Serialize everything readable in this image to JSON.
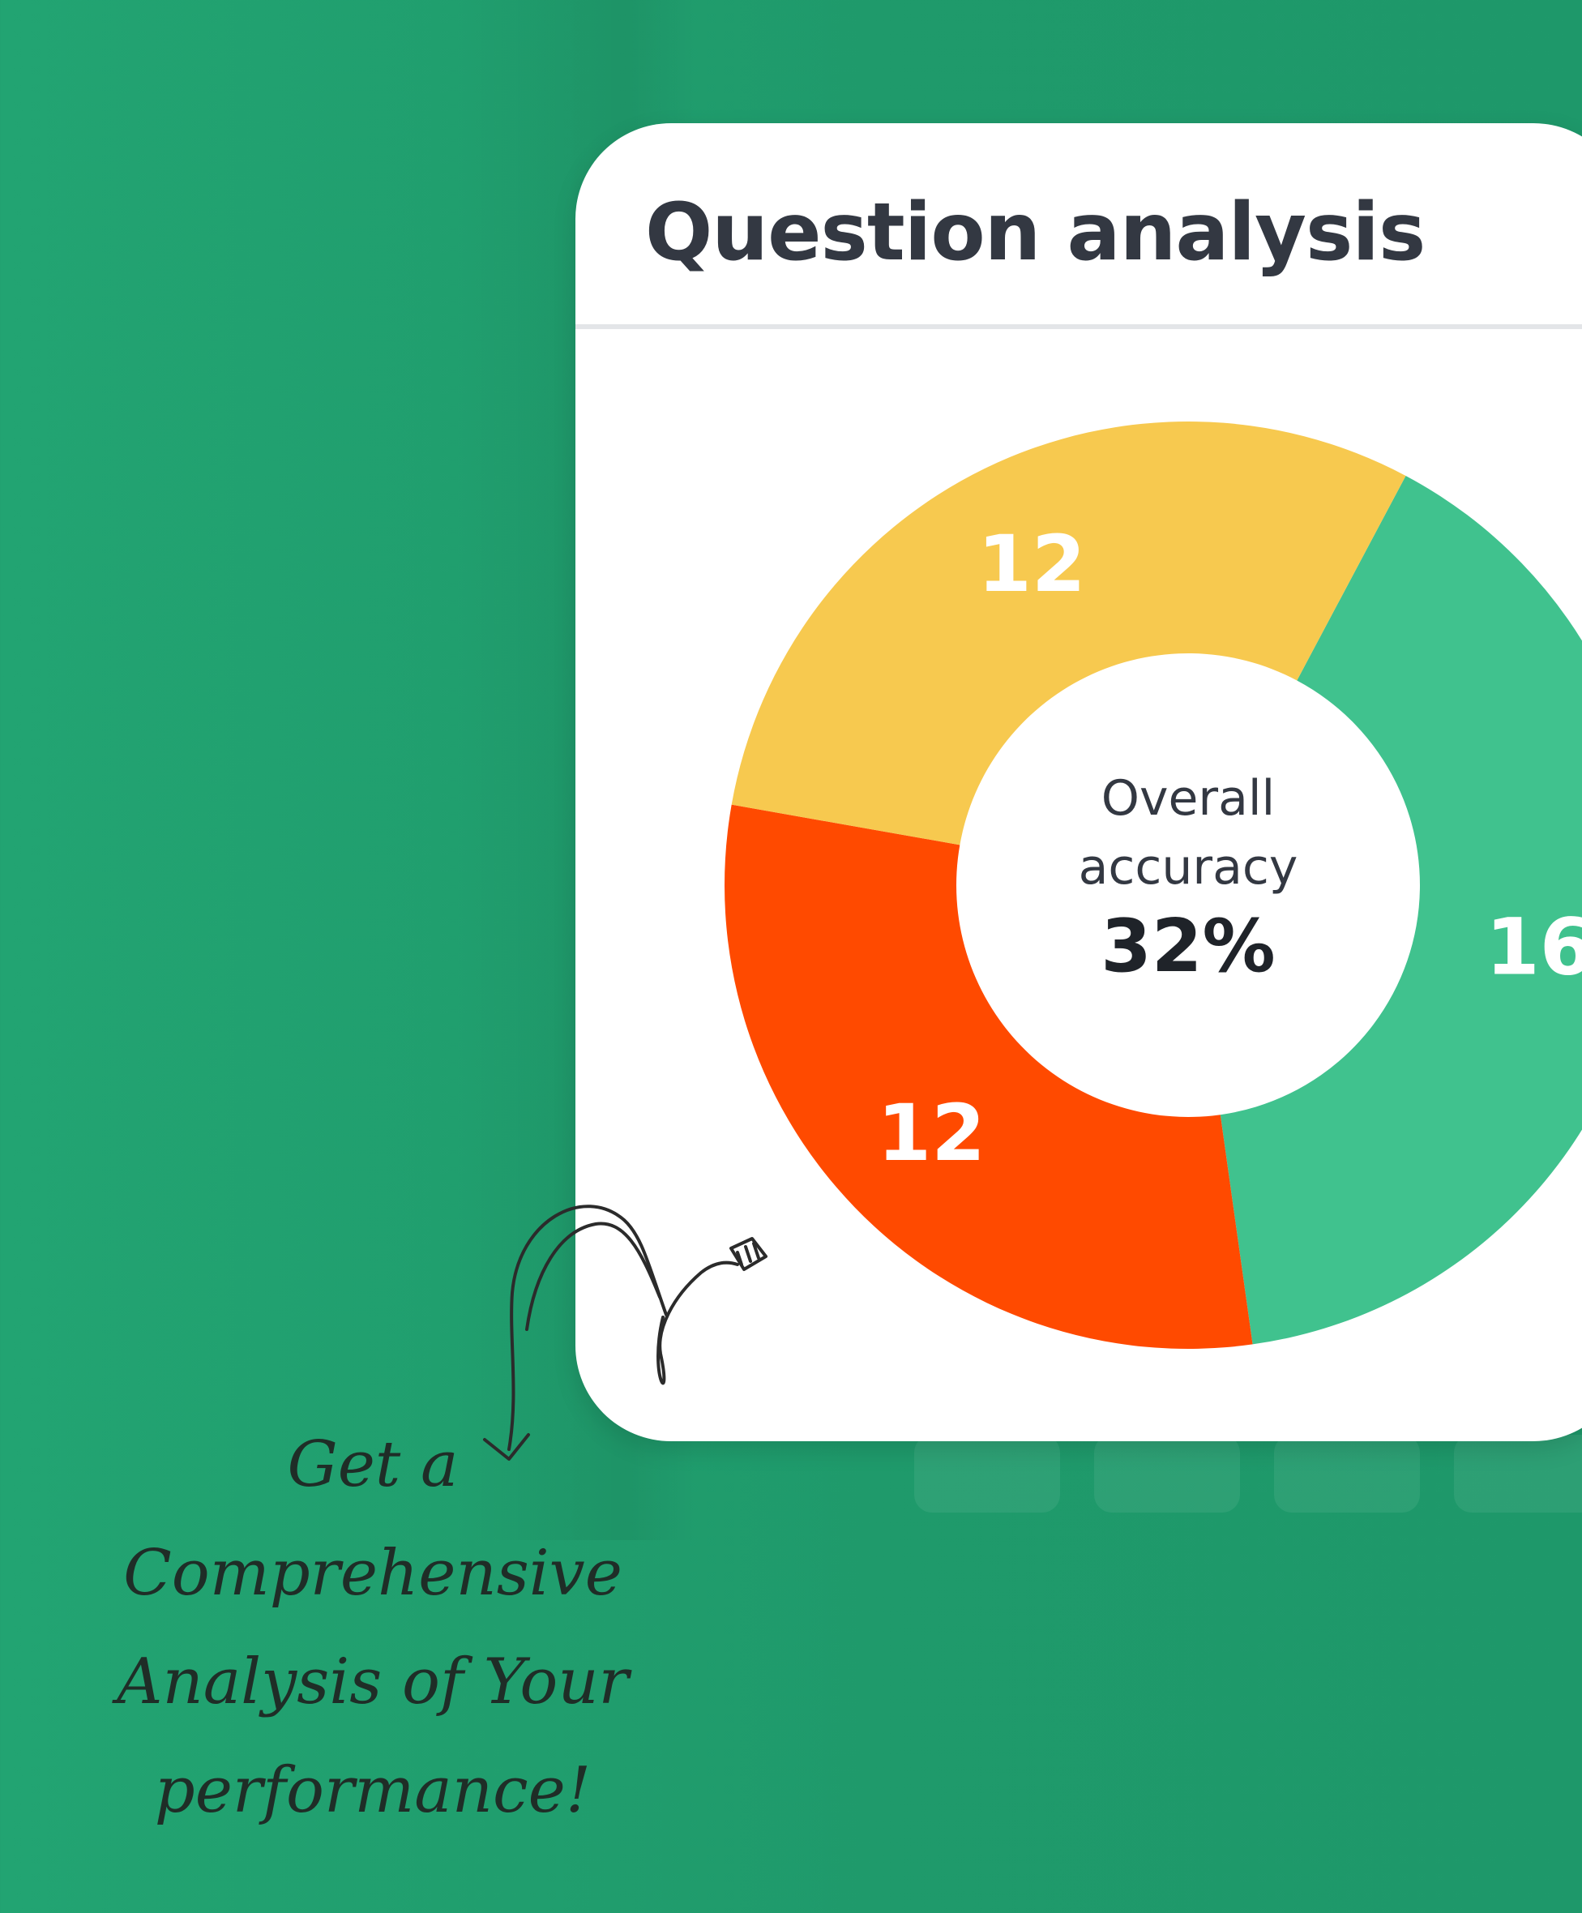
{
  "card": {
    "title": "Question analysis"
  },
  "chart_data": {
    "type": "pie",
    "style": "donut",
    "title": "",
    "slices": [
      {
        "value": 16,
        "color": "#40c28e"
      },
      {
        "value": 12,
        "color": "#ff4a00"
      },
      {
        "value": 12,
        "color": "#f7c94f"
      }
    ],
    "center": {
      "label_line1": "Overall",
      "label_line2": "accuracy",
      "value": "32%"
    }
  },
  "caption": {
    "line1": "Get a",
    "line2": "Comprehensive",
    "line3": "Analysis of Your",
    "line4": "performance!"
  },
  "colors": {
    "background": "#22a472",
    "card": "#ffffff",
    "title": "#333842",
    "caption": "#1f2d27"
  }
}
